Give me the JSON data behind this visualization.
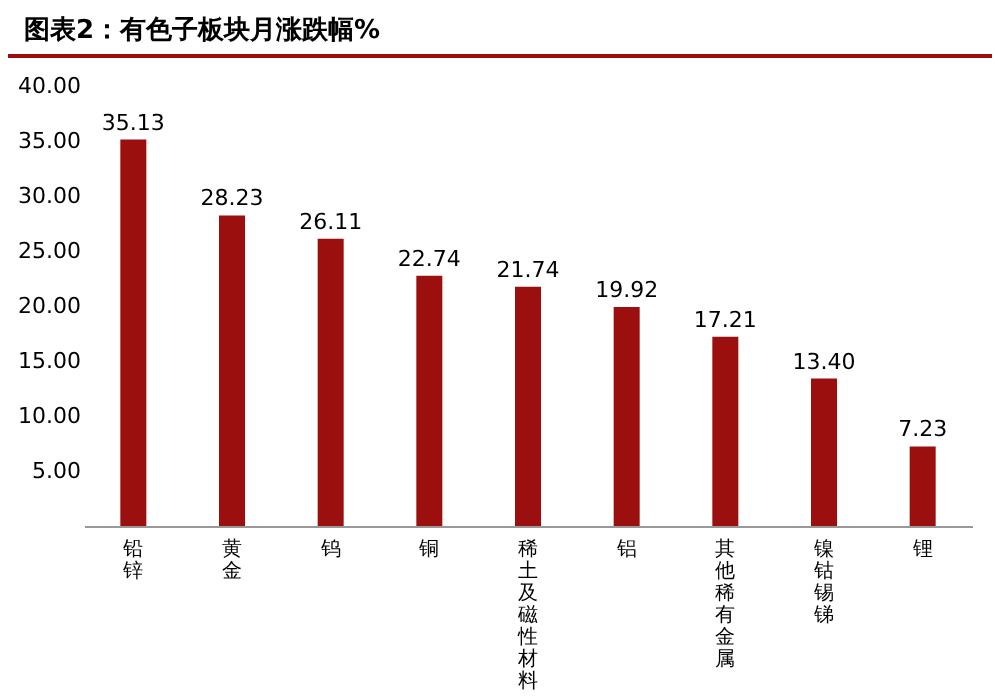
{
  "chart_data": {
    "type": "bar",
    "title": "图表2：有色子板块月涨跌幅%",
    "categories": [
      "铅锌",
      "黄金",
      "钨",
      "铜",
      "稀土及磁性材料",
      "铝",
      "其他稀有金属",
      "镍钴锡锑",
      "锂"
    ],
    "values": [
      35.13,
      28.23,
      26.11,
      22.74,
      21.74,
      19.92,
      17.21,
      13.4,
      7.23
    ],
    "value_labels": [
      "35.13",
      "28.23",
      "26.11",
      "22.74",
      "21.74",
      "19.92",
      "17.21",
      "13.40",
      "7.23"
    ],
    "color": "#9b0f0f",
    "ylim": [
      0,
      40
    ],
    "yticks": [
      {
        "value": 5,
        "label": "5.00"
      },
      {
        "value": 10,
        "label": "10.00"
      },
      {
        "value": 15,
        "label": "15.00"
      },
      {
        "value": 20,
        "label": "20.00"
      },
      {
        "value": 25,
        "label": "25.00"
      },
      {
        "value": 30,
        "label": "30.00"
      },
      {
        "value": 35,
        "label": "35.00"
      },
      {
        "value": 40,
        "label": "40.00"
      }
    ],
    "grid": false
  }
}
